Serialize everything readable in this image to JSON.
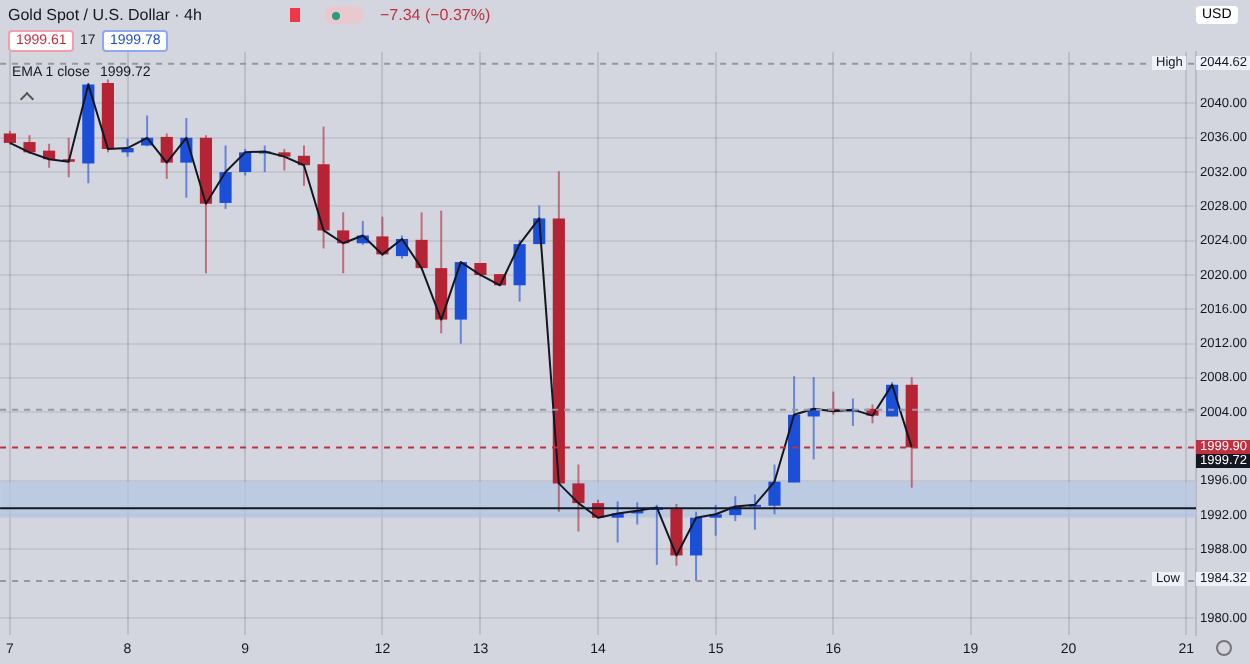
{
  "chart_data": {
    "type": "candlestick",
    "title": "Gold Spot / U.S. Dollar · 4h",
    "subtitle": "−7.34 (−0.37%)",
    "annotations": [
      "1999.61",
      "17",
      "1999.78",
      "1999.72",
      "USD",
      "High",
      "Low",
      "1999.72"
    ],
    "categories": [
      "7",
      null,
      null,
      null,
      null,
      null,
      "8",
      null,
      null,
      null,
      null,
      null,
      "9",
      null,
      null,
      null,
      null,
      null,
      null,
      "12",
      null,
      null,
      null,
      null,
      "13",
      null,
      null,
      null,
      null,
      null,
      "14",
      null,
      null,
      null,
      null,
      null,
      "15",
      null,
      null,
      null,
      null,
      null,
      "16",
      null,
      null,
      null,
      null,
      null,
      null,
      "19",
      null,
      null,
      null,
      null,
      "20",
      null,
      null,
      null,
      null,
      null,
      "21"
    ],
    "ohlc": [
      [
        2036.5,
        2036.8,
        2035.2,
        2035.4
      ],
      [
        2035.5,
        2036.3,
        2034.1,
        2034.3
      ],
      [
        2034.5,
        2035.3,
        2032.5,
        2033.5
      ],
      [
        2033.5,
        2036.0,
        2031.4,
        2033.2
      ],
      [
        2033.0,
        2042.4,
        2030.7,
        2042.2
      ],
      [
        2042.4,
        2042.8,
        2034.3,
        2034.7
      ],
      [
        2034.3,
        2035.9,
        2033.8,
        2034.8
      ],
      [
        2035.1,
        2038.6,
        2035.0,
        2036.0
      ],
      [
        2036.1,
        2036.5,
        2031.2,
        2033.1
      ],
      [
        2033.1,
        2038.3,
        2029.0,
        2036.0
      ],
      [
        2036.0,
        2036.3,
        2020.2,
        2028.3
      ],
      [
        2028.4,
        2035.1,
        2027.7,
        2032.0
      ],
      [
        2032.0,
        2034.7,
        2031.6,
        2034.3
      ],
      [
        2034.3,
        2035.1,
        2032.0,
        2034.4
      ],
      [
        2034.3,
        2034.7,
        2032.2,
        2033.8
      ],
      [
        2033.9,
        2035.1,
        2030.4,
        2032.8
      ],
      [
        2032.9,
        2037.3,
        2023.1,
        2025.2
      ],
      [
        2025.2,
        2027.3,
        2020.2,
        2023.7
      ],
      [
        2023.7,
        2026.3,
        2023.5,
        2024.6
      ],
      [
        2024.5,
        2026.8,
        2022.2,
        2022.4
      ],
      [
        2022.2,
        2024.6,
        2021.9,
        2024.2
      ],
      [
        2024.1,
        2027.3,
        2020.7,
        2020.8
      ],
      [
        2020.8,
        2027.5,
        2013.2,
        2014.8
      ],
      [
        2014.8,
        2021.5,
        2012.0,
        2021.5
      ],
      [
        2021.4,
        2021.4,
        2019.8,
        2020.0
      ],
      [
        2020.1,
        2020.1,
        2018.8,
        2018.8
      ],
      [
        2018.8,
        2024.1,
        2016.9,
        2023.6
      ],
      [
        2023.6,
        2028.1,
        2023.6,
        2026.6
      ],
      [
        2026.6,
        2032.1,
        1992.4,
        1995.7
      ],
      [
        1995.7,
        1997.9,
        1990.1,
        1993.4
      ],
      [
        1993.4,
        1993.8,
        1991.7,
        1991.7
      ],
      [
        1991.7,
        1993.6,
        1988.8,
        1992.2
      ],
      [
        1992.2,
        1993.5,
        1990.9,
        1992.5
      ],
      [
        1992.6,
        1993.2,
        1986.2,
        1992.9
      ],
      [
        1992.7,
        1993.3,
        1986.1,
        1987.3
      ],
      [
        1987.3,
        1992.4,
        1984.32,
        1991.7
      ],
      [
        1991.7,
        1993.2,
        1989.6,
        1992.1
      ],
      [
        1992.0,
        1994.2,
        1991.3,
        1993.0
      ],
      [
        1993.0,
        1994.4,
        1990.3,
        1993.2
      ],
      [
        1993.1,
        1997.9,
        1992.1,
        1995.9
      ],
      [
        1995.8,
        2008.2,
        1995.8,
        2003.7
      ],
      [
        2003.5,
        2008.1,
        1998.5,
        2004.4
      ],
      [
        2004.4,
        2006.4,
        2003.7,
        2004.1
      ],
      [
        2004.1,
        2005.6,
        2002.4,
        2004.3
      ],
      [
        2004.4,
        2004.9,
        2002.7,
        2003.6
      ],
      [
        2003.5,
        2007.5,
        2003.5,
        2007.2
      ],
      [
        2007.2,
        2008.1,
        1995.2,
        1999.9
      ],
      null,
      null,
      null,
      null,
      null,
      null,
      null,
      null,
      null,
      null,
      null,
      null,
      null,
      null
    ],
    "colors": [
      "#b42435",
      "#b42435",
      "#b42435",
      "#b42435",
      "#1c4fd8",
      "#b42435",
      "#1c4fd8",
      "#1c4fd8",
      "#b42435",
      "#1c4fd8",
      "#b42435",
      "#1c4fd8",
      "#1c4fd8",
      "#1c4fd8",
      "#b42435",
      "#b42435",
      "#b42435",
      "#b42435",
      "#1c4fd8",
      "#b42435",
      "#1c4fd8",
      "#b42435",
      "#b42435",
      "#1c4fd8",
      "#b42435",
      "#b42435",
      "#1c4fd8",
      "#1c4fd8",
      "#b42435",
      "#b42435",
      "#b42435",
      "#1c4fd8",
      "#1c4fd8",
      "#1c4fd8",
      "#b42435",
      "#1c4fd8",
      "#1c4fd8",
      "#1c4fd8",
      "#1c4fd8",
      "#1c4fd8",
      "#1c4fd8",
      "#1c4fd8",
      "#b42435",
      "#1c4fd8",
      "#b42435",
      "#1c4fd8",
      "#b42435",
      null,
      null,
      null,
      null,
      null,
      null,
      null,
      null,
      null,
      null,
      null,
      null,
      null,
      null
    ],
    "series": [
      {
        "name": "EMA 1 close",
        "type": "line",
        "color": "#131722",
        "values": [
          2035.4,
          2034.3,
          2033.5,
          2033.2,
          2042.2,
          2034.7,
          2034.8,
          2036.0,
          2033.1,
          2036.0,
          2028.3,
          2032.0,
          2034.3,
          2034.4,
          2033.8,
          2032.8,
          2025.2,
          2023.7,
          2024.6,
          2022.4,
          2024.2,
          2020.8,
          2014.8,
          2021.5,
          2020.0,
          2018.8,
          2023.6,
          2026.6,
          1995.7,
          1993.4,
          1991.7,
          1992.2,
          1992.5,
          1992.9,
          1987.3,
          1991.7,
          1992.1,
          1993.0,
          1993.2,
          1995.9,
          2003.7,
          2004.4,
          2004.1,
          2004.3,
          2003.6,
          2007.2,
          1999.9,
          null,
          null,
          null,
          null,
          null,
          null,
          null,
          null,
          null,
          null,
          null,
          null,
          null,
          null
        ]
      }
    ],
    "ylim": [
      1978,
      2046
    ],
    "yticks": [
      {
        "value": 1980,
        "label": "1980.00"
      },
      {
        "value": 1988,
        "label": "1988.00"
      },
      {
        "value": 1992,
        "label": "1992.00"
      },
      {
        "value": 1996,
        "label": "1996.00"
      },
      {
        "value": 2004,
        "label": "2004.00"
      },
      {
        "value": 2008,
        "label": "2008.00"
      },
      {
        "value": 2012,
        "label": "2012.00"
      },
      {
        "value": 2016,
        "label": "2016.00"
      },
      {
        "value": 2020,
        "label": "2020.00"
      },
      {
        "value": 2024,
        "label": "2024.00"
      },
      {
        "value": 2028,
        "label": "2028.00"
      },
      {
        "value": 2032,
        "label": "2032.00"
      },
      {
        "value": 2036,
        "label": "2036.00"
      },
      {
        "value": 2040,
        "label": "2040.00"
      }
    ],
    "ref_lines": [
      {
        "axis": "y",
        "value": 2044.62,
        "label": "2044.62",
        "color": "#9598a1",
        "line_style": "dashed"
      },
      {
        "axis": "y",
        "value": 1984.32,
        "label": "1984.32",
        "color": "#9598a1",
        "line_style": "dashed"
      },
      {
        "axis": "y",
        "value": 2004.3,
        "color": "#9598a1",
        "line_style": "dashed"
      },
      {
        "axis": "y",
        "value": 1999.9,
        "label": "1999.90",
        "color": "#c0303f",
        "line_style": "dashed"
      },
      {
        "axis": "y",
        "value": 1992.8,
        "color": "#131722",
        "line_style": "solid"
      }
    ],
    "bands": [
      {
        "axis": "y",
        "from": 1991.7,
        "to": 1995.9,
        "color": "#b4c6e4"
      }
    ],
    "grid": true,
    "legend": "top left"
  }
}
